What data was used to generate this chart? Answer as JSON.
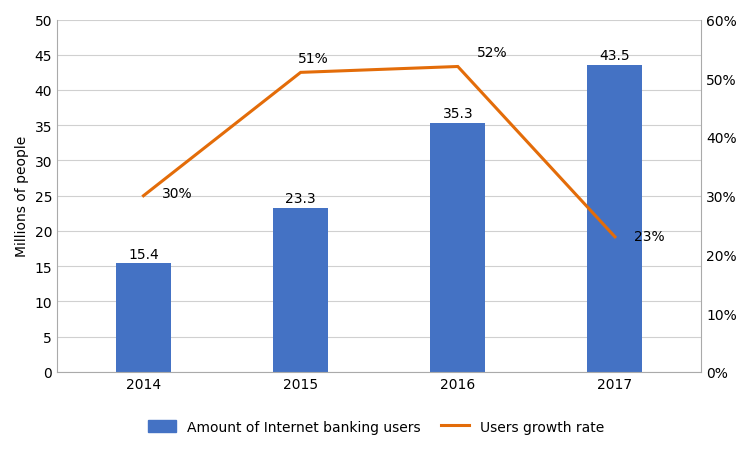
{
  "years": [
    "2014",
    "2015",
    "2016",
    "2017"
  ],
  "bar_values": [
    15.4,
    23.3,
    35.3,
    43.5
  ],
  "bar_labels": [
    "15.4",
    "23.3",
    "35.3",
    "43.5"
  ],
  "growth_rates": [
    0.3,
    0.51,
    0.52,
    0.23
  ],
  "growth_labels": [
    "30%",
    "51%",
    "52%",
    "23%"
  ],
  "bar_color": "#4472C4",
  "line_color": "#E36C09",
  "ylabel_left": "Millions of people",
  "ylim_left": [
    0,
    50
  ],
  "ylim_right": [
    0,
    0.6
  ],
  "yticks_left": [
    0,
    5,
    10,
    15,
    20,
    25,
    30,
    35,
    40,
    45,
    50
  ],
  "yticks_right": [
    0.0,
    0.1,
    0.2,
    0.3,
    0.4,
    0.5,
    0.6
  ],
  "ytick_labels_right": [
    "0%",
    "10%",
    "20%",
    "30%",
    "40%",
    "50%",
    "60%"
  ],
  "legend_bar_label": "Amount of Internet banking users",
  "legend_line_label": "Users growth rate",
  "background_color": "#FFFFFF",
  "grid_color": "#D0D0D0",
  "bar_width": 0.35,
  "line_width": 2.2,
  "fontsize": 10,
  "label_fontsize": 10,
  "tick_fontsize": 10
}
